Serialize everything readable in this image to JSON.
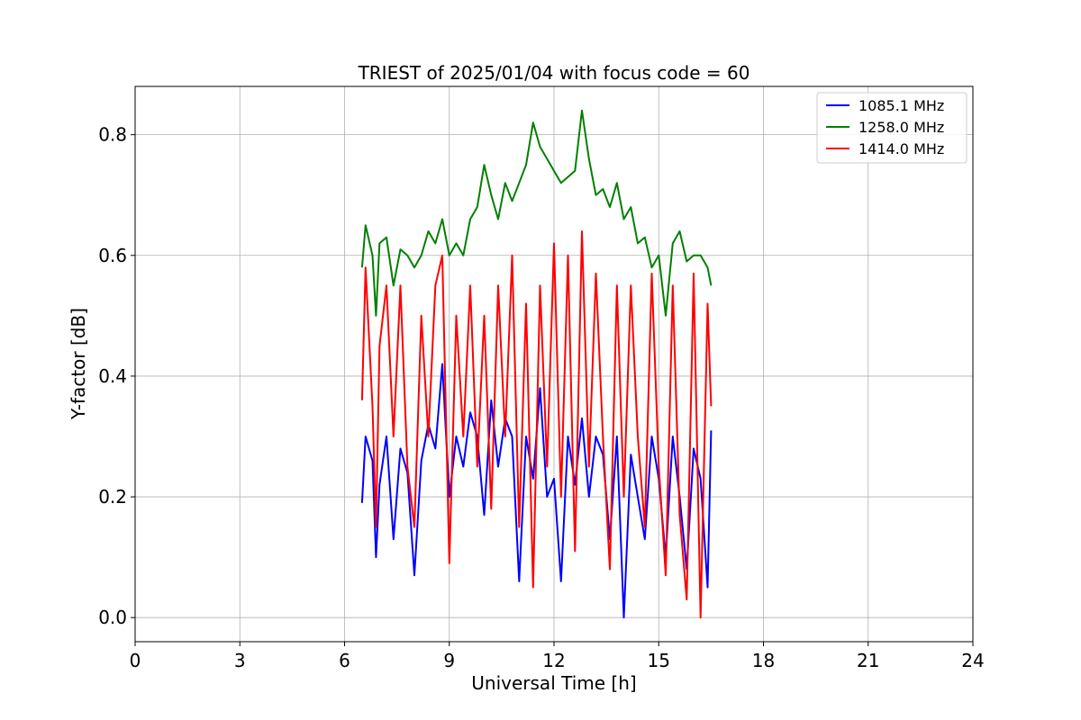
{
  "chart_data": {
    "type": "line",
    "title": "TRIEST of 2025/01/04 with focus code = 60",
    "xlabel": "Universal Time [h]",
    "ylabel": "Y-factor [dB]",
    "xlim": [
      0,
      24
    ],
    "ylim": [
      -0.04,
      0.88
    ],
    "xticks": [
      0,
      3,
      6,
      9,
      12,
      15,
      18,
      21,
      24
    ],
    "yticks": [
      0.0,
      0.2,
      0.4,
      0.6,
      0.8
    ],
    "xtick_labels": [
      "0",
      "3",
      "6",
      "9",
      "12",
      "15",
      "18",
      "21",
      "24"
    ],
    "ytick_labels": [
      "0.0",
      "0.2",
      "0.4",
      "0.6",
      "0.8"
    ],
    "grid": true,
    "legend_position": "top-right",
    "series": [
      {
        "name": "1085.1 MHz",
        "color": "#0000ff",
        "x": [
          6.5,
          6.6,
          6.8,
          6.9,
          7.0,
          7.2,
          7.4,
          7.6,
          7.8,
          8.0,
          8.2,
          8.4,
          8.6,
          8.8,
          9.0,
          9.2,
          9.4,
          9.6,
          9.8,
          10.0,
          10.2,
          10.4,
          10.6,
          10.8,
          11.0,
          11.2,
          11.4,
          11.6,
          11.8,
          12.0,
          12.2,
          12.4,
          12.6,
          12.8,
          13.0,
          13.2,
          13.4,
          13.6,
          13.8,
          14.0,
          14.2,
          14.4,
          14.6,
          14.8,
          15.0,
          15.2,
          15.4,
          15.6,
          15.8,
          16.0,
          16.2,
          16.4,
          16.5
        ],
        "y": [
          0.19,
          0.3,
          0.26,
          0.1,
          0.22,
          0.3,
          0.13,
          0.28,
          0.24,
          0.07,
          0.26,
          0.32,
          0.28,
          0.42,
          0.2,
          0.3,
          0.25,
          0.34,
          0.3,
          0.17,
          0.36,
          0.25,
          0.33,
          0.3,
          0.06,
          0.3,
          0.23,
          0.38,
          0.2,
          0.23,
          0.06,
          0.3,
          0.22,
          0.33,
          0.2,
          0.3,
          0.27,
          0.13,
          0.3,
          0.0,
          0.27,
          0.2,
          0.13,
          0.3,
          0.23,
          0.1,
          0.3,
          0.2,
          0.08,
          0.28,
          0.23,
          0.05,
          0.31
        ]
      },
      {
        "name": "1258.0 MHz",
        "color": "#008000",
        "x": [
          6.5,
          6.6,
          6.8,
          6.9,
          7.0,
          7.2,
          7.4,
          7.6,
          7.8,
          8.0,
          8.2,
          8.4,
          8.6,
          8.8,
          9.0,
          9.2,
          9.4,
          9.6,
          9.8,
          10.0,
          10.2,
          10.4,
          10.6,
          10.8,
          11.0,
          11.2,
          11.4,
          11.6,
          11.8,
          12.0,
          12.2,
          12.4,
          12.6,
          12.8,
          13.0,
          13.2,
          13.4,
          13.6,
          13.8,
          14.0,
          14.2,
          14.4,
          14.6,
          14.8,
          15.0,
          15.2,
          15.4,
          15.6,
          15.8,
          16.0,
          16.2,
          16.4,
          16.5
        ],
        "y": [
          0.58,
          0.65,
          0.6,
          0.5,
          0.62,
          0.63,
          0.55,
          0.61,
          0.6,
          0.58,
          0.6,
          0.64,
          0.62,
          0.66,
          0.6,
          0.62,
          0.6,
          0.66,
          0.68,
          0.75,
          0.7,
          0.66,
          0.72,
          0.69,
          0.72,
          0.75,
          0.82,
          0.78,
          0.76,
          0.74,
          0.72,
          0.73,
          0.74,
          0.84,
          0.76,
          0.7,
          0.71,
          0.68,
          0.72,
          0.66,
          0.68,
          0.62,
          0.63,
          0.58,
          0.6,
          0.5,
          0.62,
          0.64,
          0.59,
          0.6,
          0.6,
          0.58,
          0.55
        ]
      },
      {
        "name": "1414.0 MHz",
        "color": "#ff0000",
        "x": [
          6.5,
          6.6,
          6.8,
          6.9,
          7.0,
          7.2,
          7.4,
          7.6,
          7.8,
          8.0,
          8.2,
          8.4,
          8.6,
          8.8,
          9.0,
          9.2,
          9.4,
          9.6,
          9.8,
          10.0,
          10.2,
          10.4,
          10.6,
          10.8,
          11.0,
          11.2,
          11.4,
          11.6,
          11.8,
          12.0,
          12.2,
          12.4,
          12.6,
          12.8,
          13.0,
          13.2,
          13.4,
          13.6,
          13.8,
          14.0,
          14.2,
          14.4,
          14.6,
          14.8,
          15.0,
          15.2,
          15.4,
          15.6,
          15.8,
          16.0,
          16.2,
          16.4,
          16.5
        ],
        "y": [
          0.36,
          0.58,
          0.35,
          0.15,
          0.45,
          0.55,
          0.3,
          0.55,
          0.25,
          0.15,
          0.5,
          0.3,
          0.55,
          0.6,
          0.09,
          0.5,
          0.3,
          0.55,
          0.25,
          0.5,
          0.18,
          0.55,
          0.3,
          0.6,
          0.15,
          0.52,
          0.05,
          0.55,
          0.25,
          0.62,
          0.2,
          0.6,
          0.11,
          0.64,
          0.25,
          0.57,
          0.3,
          0.08,
          0.55,
          0.2,
          0.55,
          0.3,
          0.15,
          0.57,
          0.25,
          0.07,
          0.55,
          0.17,
          0.03,
          0.57,
          0.0,
          0.52,
          0.35
        ]
      }
    ]
  }
}
